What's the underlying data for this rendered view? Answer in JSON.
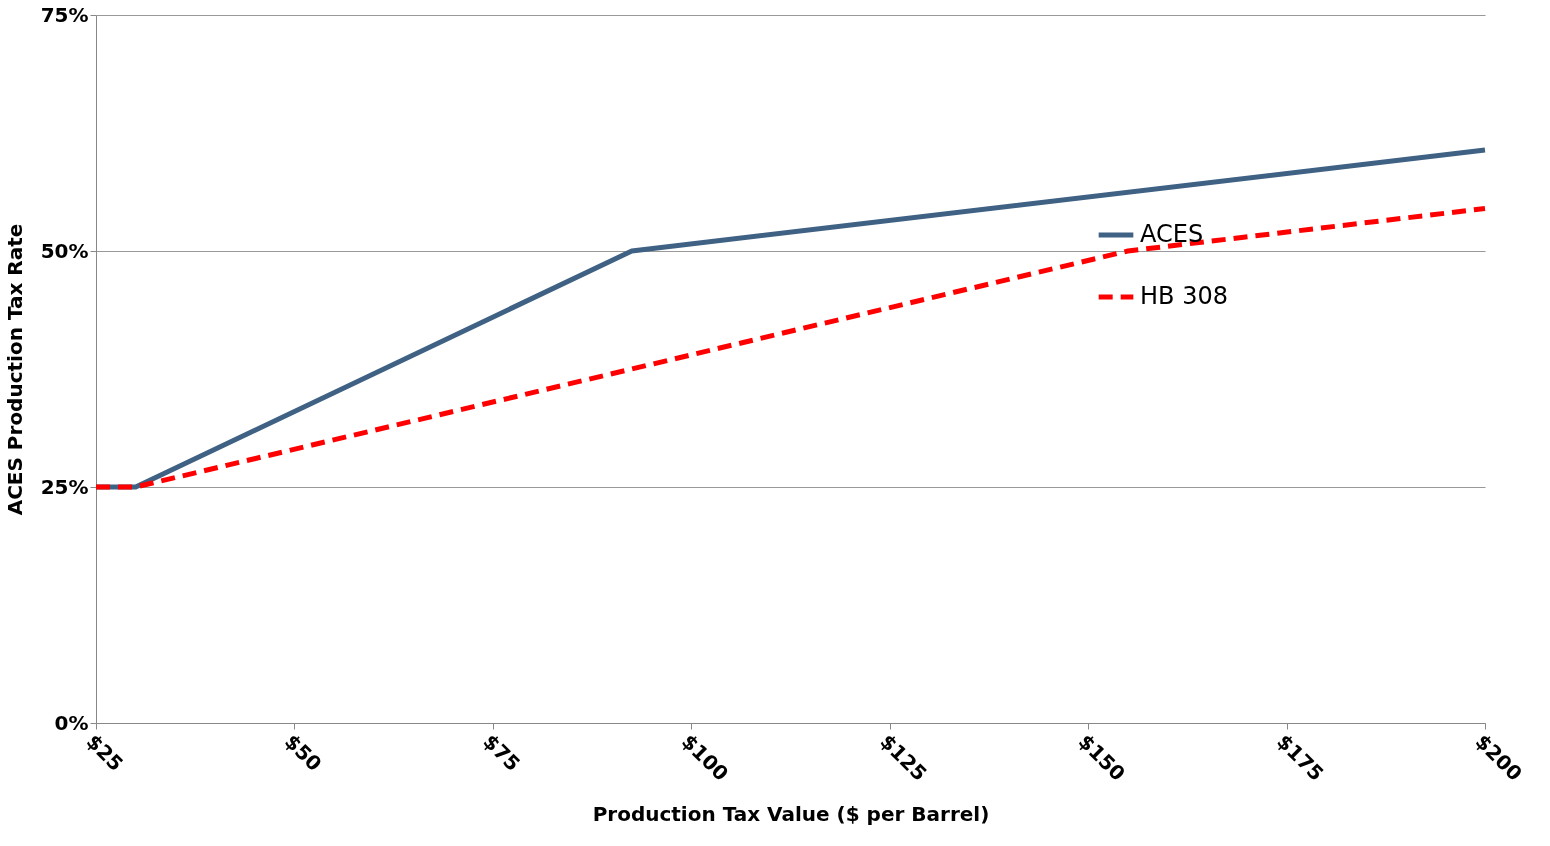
{
  "chart_data": {
    "type": "line",
    "xlabel": "Production Tax Value ($ per Barrel)",
    "ylabel": "ACES Production Tax Rate",
    "xlim": [
      25,
      200
    ],
    "xticks": [
      {
        "value": 25,
        "label": "$25"
      },
      {
        "value": 50,
        "label": "$50"
      },
      {
        "value": 75,
        "label": "$75"
      },
      {
        "value": 100,
        "label": "$100"
      },
      {
        "value": 125,
        "label": "$125"
      },
      {
        "value": 150,
        "label": "$150"
      },
      {
        "value": 175,
        "label": "$175"
      },
      {
        "value": 200,
        "label": "$200"
      }
    ],
    "ylim": [
      0,
      75
    ],
    "yticks": [
      {
        "value": 0,
        "label": "0%"
      },
      {
        "value": 25,
        "label": "25%"
      },
      {
        "value": 50,
        "label": "50%"
      },
      {
        "value": 75,
        "label": "75%"
      }
    ],
    "grid": "y",
    "legend": "right",
    "marker": "none",
    "series": [
      {
        "name": "ACES",
        "color": "#3f6184",
        "line_style": "solid",
        "x": [
          25,
          30,
          92.5,
          200
        ],
        "values": [
          25,
          25,
          50,
          60.7
        ]
      },
      {
        "name": "HB 308",
        "color": "#ff0000",
        "line_style": "dashed",
        "x": [
          25,
          30,
          92.5,
          155,
          200
        ],
        "values": [
          25,
          25,
          37.5,
          50,
          54.5
        ]
      }
    ]
  }
}
